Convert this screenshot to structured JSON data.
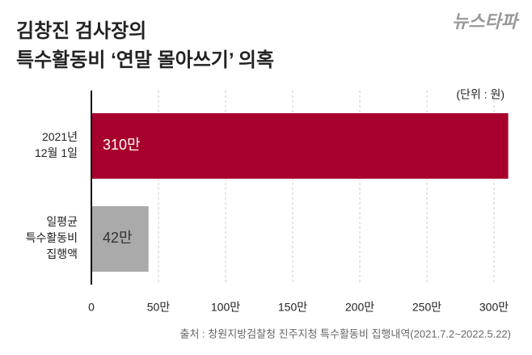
{
  "chart_data": {
    "type": "hbar",
    "title": "김창진 검사장의\n특수활동비 ‘연말 몰아쓰기’ 의혹",
    "logo": "뉴스타파",
    "unit": "(단위 : 원)",
    "source": "출처 : 창원지방검찰청 진주지청 특수활동비 집행내역(2021.7.2~2022.5.22)",
    "categories": [
      "2021년\n12월 1일",
      "일평균\n특수활동비\n집행액"
    ],
    "values": [
      310,
      42
    ],
    "value_labels": [
      "310만",
      "42만"
    ],
    "colors": [
      "#a8002d",
      "#aaaaaa"
    ],
    "xlim": [
      0,
      310
    ],
    "xticks": [
      0,
      {
        "value": 50,
        "label": "50만"
      },
      {
        "value": 100,
        "label": "100만"
      },
      {
        "value": 150,
        "label": "150만"
      },
      {
        "value": 200,
        "label": "200만"
      },
      {
        "value": 250,
        "label": "250만"
      },
      {
        "value": 300,
        "label": "300만"
      }
    ],
    "grid": true
  }
}
